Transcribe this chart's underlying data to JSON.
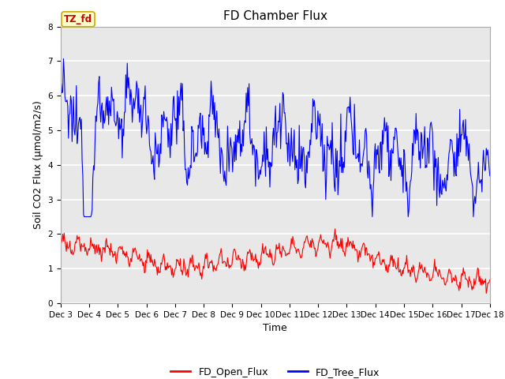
{
  "title": "FD Chamber Flux",
  "xlabel": "Time",
  "ylabel": "Soil CO2 Flux (μmol/m2/s)",
  "ylim": [
    0.0,
    8.0
  ],
  "yticks": [
    0.0,
    1.0,
    2.0,
    3.0,
    4.0,
    5.0,
    6.0,
    7.0,
    8.0
  ],
  "xtick_labels": [
    "Dec 3",
    "Dec 4",
    "Dec 5",
    "Dec 6",
    "Dec 7",
    "Dec 8",
    "Dec 9",
    "Dec 10",
    "Dec 11",
    "Dec 12",
    "Dec 13",
    "Dec 14",
    "Dec 15",
    "Dec 16",
    "Dec 17",
    "Dec 18"
  ],
  "tab_label": "TZ_fd",
  "tab_text_color": "#cc0000",
  "tab_bg_color": "#ffffcc",
  "tab_border_color": "#ccaa00",
  "legend_labels": [
    "FD_Open_Flux",
    "FD_Tree_Flux"
  ],
  "legend_colors": [
    "red",
    "blue"
  ],
  "open_flux_color": "red",
  "tree_flux_color": "blue",
  "background_color": "#e8e8e8",
  "grid_color": "white",
  "title_fontsize": 11,
  "axis_fontsize": 9,
  "tick_fontsize": 7.5
}
